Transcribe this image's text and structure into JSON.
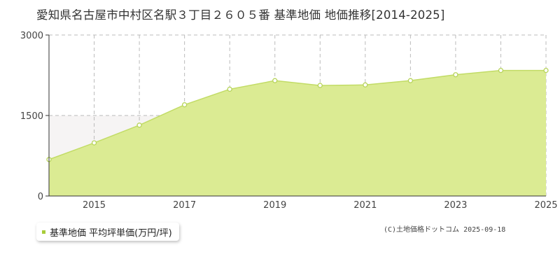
{
  "title": "愛知県名古屋市中村区名駅３丁目２６０５番 基準地価 地価推移[2014-2025]",
  "legend_label": "基準地価 平均坪単価(万円/坪)",
  "credit": "(C)土地価格ドットコム 2025-09-18",
  "colors": {
    "fill": "#dbeb93",
    "line": "#c2dc66",
    "marker": "#ffffff",
    "marker_stroke": "#b7d45a",
    "grid": "#bbbbbb",
    "shade": "#f6f4f4",
    "legend_swatch": "#a8cc3a"
  },
  "chart_data": {
    "type": "area",
    "x": [
      2014,
      2015,
      2016,
      2017,
      2018,
      2019,
      2020,
      2021,
      2022,
      2023,
      2024,
      2025
    ],
    "series": [
      {
        "name": "基準地価 平均坪単価(万円/坪)",
        "values": [
          680,
          990,
          1320,
          1700,
          1990,
          2150,
          2060,
          2070,
          2150,
          2260,
          2340,
          2340
        ]
      }
    ],
    "ylim": [
      0,
      3000
    ],
    "xlim": [
      2014,
      2025
    ],
    "y_ticks": [
      "0",
      "1500",
      "3000"
    ],
    "x_ticks": [
      "2015",
      "2017",
      "2019",
      "2021",
      "2023",
      "2025"
    ],
    "grid": true,
    "title": "愛知県名古屋市中村区名駅３丁目２６０５番 基準地価 地価推移[2014-2025]"
  }
}
